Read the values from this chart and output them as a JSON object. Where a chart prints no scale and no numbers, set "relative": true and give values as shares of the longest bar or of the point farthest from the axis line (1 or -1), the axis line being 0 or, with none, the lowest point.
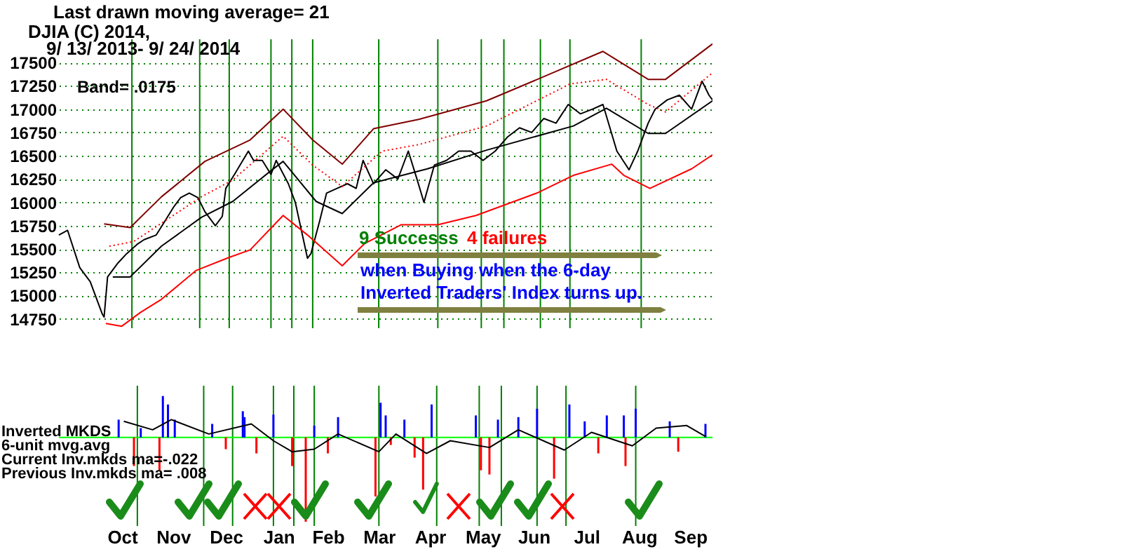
{
  "chart_data": [
    {
      "type": "line",
      "title": "Last drawn moving average= 21",
      "subtitle": "DJIA   (C) 2014,",
      "annotations": [
        "9/ 13/ 2013- 9/ 24/ 2014",
        "Band= .0175",
        "9 Successs",
        "4 failures",
        "when Buying when the 6-day",
        "Inverted Traders' Index turns up."
      ],
      "series": [
        {
          "color": "#000000",
          "x": [
            "2013-09-13",
            "2013-09-18",
            "2013-09-25",
            "2013-10-01",
            "2013-10-08",
            "2013-10-09",
            "2013-10-11",
            "2013-10-17",
            "2013-10-22",
            "2013-10-28",
            "2013-11-01",
            "2013-11-08",
            "2013-11-13",
            "2013-11-18",
            "2013-11-22",
            "2013-11-27",
            "2013-12-02",
            "2013-12-06",
            "2013-12-12",
            "2013-12-16",
            "2013-12-18",
            "2013-12-23",
            "2013-12-31",
            "2014-01-03",
            "2014-01-08",
            "2014-01-13",
            "2014-01-16",
            "2014-01-23",
            "2014-01-27",
            "2014-02-03",
            "2014-02-05",
            "2014-02-10",
            "2014-02-14",
            "2014-02-20",
            "2014-02-26",
            "2014-03-03",
            "2014-03-07",
            "2014-03-13",
            "2014-03-20",
            "2014-03-27",
            "2014-04-02",
            "2014-04-07",
            "2014-04-11",
            "2014-04-17",
            "2014-04-24",
            "2014-05-01",
            "2014-05-08",
            "2014-05-15",
            "2014-05-22",
            "2014-05-29",
            "2014-06-05",
            "2014-06-12",
            "2014-06-19",
            "2014-06-26",
            "2014-07-03",
            "2014-07-10",
            "2014-07-17",
            "2014-07-23",
            "2014-07-31",
            "2014-08-07",
            "2014-08-12",
            "2014-08-18",
            "2014-08-22",
            "2014-08-29",
            "2014-09-05",
            "2014-09-12",
            "2014-09-18",
            "2014-09-22",
            "2014-09-24"
          ],
          "values": [
            15650,
            15700,
            15300,
            15150,
            14800,
            14770,
            15200,
            15350,
            15450,
            15550,
            15600,
            15650,
            15800,
            15950,
            16050,
            16100,
            16050,
            15900,
            15750,
            15850,
            16150,
            16300,
            16550,
            16450,
            16450,
            16300,
            16450,
            16200,
            16000,
            15400,
            15450,
            15800,
            16100,
            16150,
            16200,
            16150,
            16450,
            16200,
            16350,
            16250,
            16550,
            16250,
            16000,
            16400,
            16450,
            16550,
            16550,
            16450,
            16550,
            16700,
            16800,
            16750,
            16900,
            16850,
            17050,
            16950,
            17000,
            17050,
            16550,
            16350,
            16550,
            16850,
            17000,
            17100,
            17150,
            17000,
            17300,
            17150,
            17100
          ]
        },
        {
          "color": "#800000",
          "x": [
            "2013-10-09",
            "2013-10-24",
            "2013-11-11",
            "2013-12-06",
            "2014-01-01",
            "2014-01-20",
            "2014-02-06",
            "2014-02-23",
            "2014-03-13",
            "2014-04-08",
            "2014-05-17",
            "2014-06-09",
            "2014-07-23",
            "2014-08-18",
            "2014-08-28",
            "2014-09-24"
          ],
          "values": [
            15770,
            15730,
            16060,
            16440,
            16670,
            17000,
            16670,
            16410,
            16790,
            16890,
            17090,
            17270,
            17620,
            17320,
            17320,
            17700
          ]
        },
        {
          "color": "#ff0000",
          "x": [
            "2013-10-10",
            "2013-10-19",
            "2013-10-30",
            "2013-11-11",
            "2013-12-01",
            "2013-12-20",
            "2014-01-01",
            "2014-01-20",
            "2014-02-03",
            "2014-02-23",
            "2014-03-08",
            "2014-03-29",
            "2014-04-19",
            "2014-05-11",
            "2014-06-15",
            "2014-07-06",
            "2014-07-28",
            "2014-08-04",
            "2014-08-19",
            "2014-09-12",
            "2014-09-24"
          ],
          "values": [
            14700,
            14670,
            14820,
            14960,
            15270,
            15410,
            15490,
            15860,
            15650,
            15320,
            15560,
            15760,
            15760,
            15860,
            16100,
            16290,
            16410,
            16290,
            16150,
            16360,
            16510
          ]
        },
        {
          "color": "#000000",
          "x": [
            "2013-10-14",
            "2013-10-24",
            "2013-11-11",
            "2013-12-04",
            "2013-12-22",
            "2014-01-13",
            "2014-01-20",
            "2014-02-08",
            "2014-02-23",
            "2014-03-13",
            "2014-04-13",
            "2014-05-17",
            "2014-07-06",
            "2014-07-25",
            "2014-08-18",
            "2014-08-28",
            "2014-09-24"
          ],
          "values": [
            15200,
            15200,
            15530,
            15840,
            16010,
            16340,
            16440,
            16010,
            15880,
            16210,
            16360,
            16560,
            16820,
            17010,
            16740,
            16740,
            17090
          ]
        },
        {
          "color": "#ff0000",
          "line_style": "dotted",
          "x": [
            "2013-10-12",
            "2013-10-26",
            "2013-12-04",
            "2013-12-22",
            "2014-01-20",
            "2014-02-06",
            "2014-02-23",
            "2014-03-18",
            "2014-04-08",
            "2014-05-17",
            "2014-07-04",
            "2014-07-25",
            "2014-08-18",
            "2014-08-28",
            "2014-09-24"
          ],
          "values": [
            15530,
            15580,
            16060,
            16240,
            16710,
            16400,
            16170,
            16550,
            16620,
            16820,
            17270,
            17320,
            17050,
            16970,
            17390
          ]
        }
      ],
      "xlim": [
        "2013-09-13",
        "2014-09-24"
      ],
      "ylim": [
        14650,
        17750
      ],
      "yticks": [
        14750,
        15000,
        15250,
        15500,
        15750,
        16000,
        16250,
        16500,
        16750,
        17000,
        17250,
        17500
      ],
      "tick_labels": "y",
      "grid": "y",
      "ref_lines": [
        {
          "axis": "x",
          "value": "2013-10-25",
          "color": "#008000"
        },
        {
          "axis": "x",
          "value": "2013-12-03",
          "color": "#008000"
        },
        {
          "axis": "x",
          "value": "2013-12-20",
          "color": "#008000"
        },
        {
          "axis": "x",
          "value": "2014-01-13",
          "color": "#008000"
        },
        {
          "axis": "x",
          "value": "2014-01-25",
          "color": "#008000"
        },
        {
          "axis": "x",
          "value": "2014-02-06",
          "color": "#008000"
        },
        {
          "axis": "x",
          "value": "2014-03-16",
          "color": "#008000"
        },
        {
          "axis": "x",
          "value": "2014-04-19",
          "color": "#008000"
        },
        {
          "axis": "x",
          "value": "2014-05-14",
          "color": "#008000"
        },
        {
          "axis": "x",
          "value": "2014-05-27",
          "color": "#008000"
        },
        {
          "axis": "x",
          "value": "2014-06-17",
          "color": "#008000"
        },
        {
          "axis": "x",
          "value": "2014-07-04",
          "color": "#008000"
        },
        {
          "axis": "x",
          "value": "2014-08-14",
          "color": "#008000"
        }
      ]
    },
    {
      "type": "bar",
      "relative": true,
      "annotations": [
        "Inverted MKDS",
        "6-unit mvg.avg",
        "Current Inv.mkds ma=-.022",
        "Previous Inv.mkds ma= .008"
      ],
      "series": [
        {
          "x": [
            "2013-10-14",
            "2013-10-23",
            "2013-10-27",
            "2013-11-07",
            "2013-11-09",
            "2013-11-12",
            "2013-11-16",
            "2013-12-08",
            "2013-12-16",
            "2013-12-26",
            "2013-12-27",
            "2014-01-03",
            "2014-01-13",
            "2014-01-24",
            "2014-02-01",
            "2014-02-06",
            "2014-02-14",
            "2014-02-20",
            "2014-03-14",
            "2014-03-17",
            "2014-03-20",
            "2014-03-23",
            "2014-03-31",
            "2014-04-06",
            "2014-04-11",
            "2014-04-16",
            "2014-05-12",
            "2014-05-15",
            "2014-05-20",
            "2014-05-25",
            "2014-06-06",
            "2014-06-17",
            "2014-06-27",
            "2014-07-06",
            "2014-07-15",
            "2014-07-23",
            "2014-07-28",
            "2014-08-07",
            "2014-08-08",
            "2014-08-14",
            "2014-09-03",
            "2014-09-08",
            "2014-09-24"
          ],
          "values": [
            0.21,
            -0.34,
            0.11,
            -0.39,
            0.49,
            0.39,
            0.21,
            0.16,
            -0.14,
            0.31,
            0.24,
            -0.19,
            0.27,
            -0.34,
            -1,
            0.14,
            -0.19,
            0.24,
            -0.7,
            0.41,
            0.26,
            -0.09,
            0.21,
            -0.24,
            -0.62,
            0.39,
            0.26,
            -0.39,
            -0.44,
            0.21,
            0.24,
            0.34,
            -0.49,
            0.39,
            0.19,
            -0.19,
            0.26,
            0.26,
            -0.34,
            0.34,
            0.19,
            -0.17,
            0.16
          ],
          "colors": [
            "#0000ff",
            "#ff0000",
            "#0000ff",
            "#ff0000",
            "#0000ff",
            "#0000ff",
            "#0000ff",
            "#0000ff",
            "#ff0000",
            "#0000ff",
            "#0000ff",
            "#ff0000",
            "#0000ff",
            "#ff0000",
            "#ff0000",
            "#0000ff",
            "#ff0000",
            "#0000ff",
            "#ff0000",
            "#0000ff",
            "#0000ff",
            "#ff0000",
            "#0000ff",
            "#ff0000",
            "#ff0000",
            "#0000ff",
            "#0000ff",
            "#ff0000",
            "#ff0000",
            "#0000ff",
            "#0000ff",
            "#0000ff",
            "#ff0000",
            "#0000ff",
            "#0000ff",
            "#ff0000",
            "#0000ff",
            "#0000ff",
            "#ff0000",
            "#0000ff",
            "#0000ff",
            "#ff0000",
            "#0000ff"
          ]
        },
        {
          "type": "line",
          "color": "#000000",
          "x": [
            "2013-10-17",
            "2013-11-03",
            "2013-11-14",
            "2013-12-06",
            "2013-12-31",
            "2014-01-13",
            "2014-01-24",
            "2014-02-06",
            "2014-02-20",
            "2014-03-16",
            "2014-03-26",
            "2014-04-13",
            "2014-04-27",
            "2014-05-20",
            "2014-06-06",
            "2014-07-03",
            "2014-07-19",
            "2014-08-12",
            "2014-08-26",
            "2014-09-13",
            "2014-09-24"
          ],
          "values": [
            0.19,
            0.09,
            0.21,
            0.04,
            0.16,
            -0.04,
            -0.17,
            -0.14,
            0.04,
            -0.17,
            0.04,
            -0.19,
            -0.04,
            -0.12,
            0.09,
            -0.15,
            0.06,
            -0.1,
            0.11,
            0.14,
            0.01
          ]
        }
      ],
      "xlim": [
        "2013-09-13",
        "2014-09-24"
      ],
      "xticks": [
        {
          "value": "2013-10-16",
          "label": "Oct"
        },
        {
          "value": "2013-11-15",
          "label": "Nov"
        },
        {
          "value": "2013-12-16",
          "label": "Dec"
        },
        {
          "value": "2014-01-16",
          "label": "Jan"
        },
        {
          "value": "2014-02-14",
          "label": "Feb"
        },
        {
          "value": "2014-03-16",
          "label": "Mar"
        },
        {
          "value": "2014-04-15",
          "label": "Apr"
        },
        {
          "value": "2014-05-16",
          "label": "May"
        },
        {
          "value": "2014-06-15",
          "label": "Jun"
        },
        {
          "value": "2014-07-16",
          "label": "Jul"
        },
        {
          "value": "2014-08-16",
          "label": "Aug"
        },
        {
          "value": "2014-09-15",
          "label": "Sep"
        }
      ],
      "tick_labels": "x",
      "ref_lines": [
        {
          "axis": "y",
          "value": 0,
          "color": "#00ff00"
        },
        {
          "axis": "x",
          "value": "2013-10-25",
          "color": "#008000"
        },
        {
          "axis": "x",
          "value": "2013-12-03",
          "color": "#008000"
        },
        {
          "axis": "x",
          "value": "2013-12-20",
          "color": "#008000"
        },
        {
          "axis": "x",
          "value": "2014-01-13",
          "color": "#008000"
        },
        {
          "axis": "x",
          "value": "2014-01-25",
          "color": "#008000"
        },
        {
          "axis": "x",
          "value": "2014-02-06",
          "color": "#008000"
        },
        {
          "axis": "x",
          "value": "2014-03-16",
          "color": "#008000"
        },
        {
          "axis": "x",
          "value": "2014-04-19",
          "color": "#008000"
        },
        {
          "axis": "x",
          "value": "2014-05-14",
          "color": "#008000"
        },
        {
          "axis": "x",
          "value": "2014-05-27",
          "color": "#008000"
        },
        {
          "axis": "x",
          "value": "2014-06-17",
          "color": "#008000"
        },
        {
          "axis": "x",
          "value": "2014-07-04",
          "color": "#008000"
        },
        {
          "axis": "x",
          "value": "2014-08-14",
          "color": "#008000"
        }
      ]
    }
  ]
}
